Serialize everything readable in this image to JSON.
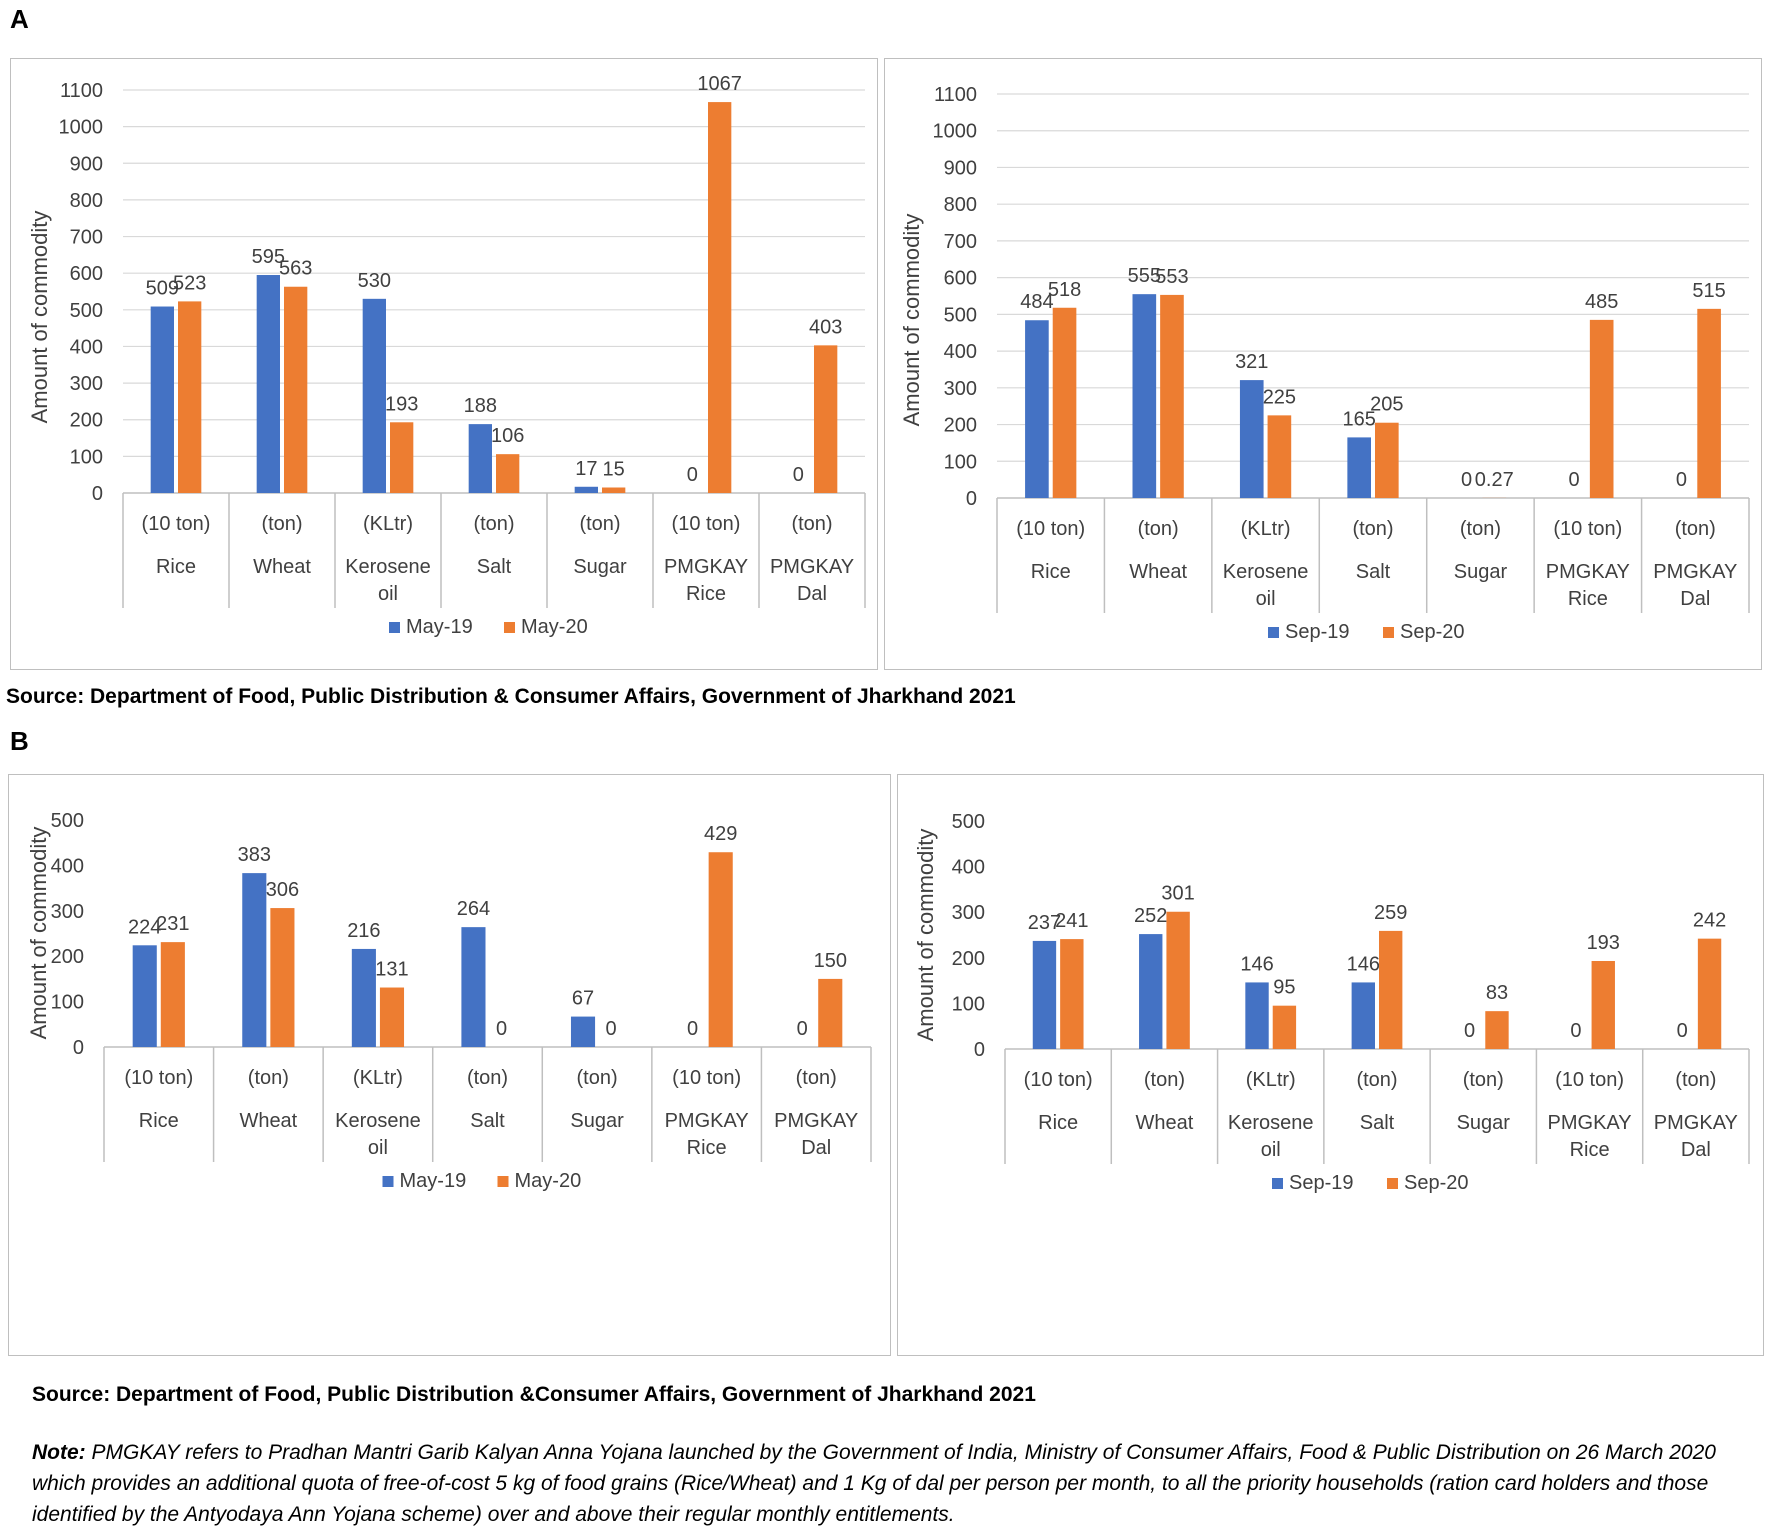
{
  "panel_a_label": "A",
  "panel_b_label": "B",
  "source_a": "Source: Department of Food, Public Distribution & Consumer Affairs, Government of Jharkhand 2021",
  "source_b": "Source: Department of Food, Public Distribution &Consumer Affairs, Government of Jharkhand 2021",
  "note_label": "Note:",
  "note_text": " PMGKAY refers to Pradhan Mantri Garib Kalyan Anna Yojana launched by the Government of India, Ministry of Consumer Affairs, Food & Public Distribution on 26 March 2020 which provides an additional quota of free-of-cost 5 kg of food grains (Rice/Wheat) and 1 Kg of dal per person per month, to all the priority households (ration card holders and those identified by the Antyodaya Ann Yojana scheme) over and above their regular monthly entitlements.",
  "colors": {
    "series1": "#4472c4",
    "series2": "#ed7d31",
    "grid": "#d9d9d9",
    "text": "#404040"
  },
  "chart_data": [
    {
      "type": "bar",
      "panel": "A",
      "ylabel": "Amount of commodity",
      "ylim": [
        0,
        1100
      ],
      "yticks": [
        0,
        100,
        200,
        300,
        400,
        500,
        600,
        700,
        800,
        900,
        1000,
        1100
      ],
      "units": [
        "(10 ton)",
        "(ton)",
        "(KLtr)",
        "(ton)",
        "(ton)",
        "(10 ton)",
        "(ton)"
      ],
      "categories": [
        [
          "Rice"
        ],
        [
          "Wheat"
        ],
        [
          "Kerosene",
          "oil"
        ],
        [
          "Salt"
        ],
        [
          "Sugar"
        ],
        [
          "PMGKAY",
          "Rice"
        ],
        [
          "PMGKAY",
          "Dal"
        ]
      ],
      "series": [
        {
          "name": "May-19",
          "values": [
            509,
            595,
            530,
            188,
            17,
            0,
            0
          ],
          "labels": [
            "509",
            "595",
            "530",
            "188",
            "17",
            "0",
            "0"
          ]
        },
        {
          "name": "May-20",
          "values": [
            523,
            563,
            193,
            106,
            15,
            1067,
            403
          ],
          "labels": [
            "523",
            "563",
            "193",
            "106",
            "15",
            "1067",
            "403"
          ]
        }
      ],
      "legend": "bottom",
      "grid": true
    },
    {
      "type": "bar",
      "panel": "A",
      "ylabel": "Amount of commodity",
      "ylim": [
        0,
        1100
      ],
      "yticks": [
        0,
        100,
        200,
        300,
        400,
        500,
        600,
        700,
        800,
        900,
        1000,
        1100
      ],
      "units": [
        "(10 ton)",
        "(ton)",
        "(KLtr)",
        "(ton)",
        "(ton)",
        "(10 ton)",
        "(ton)"
      ],
      "categories": [
        [
          "Rice"
        ],
        [
          "Wheat"
        ],
        [
          "Kerosene",
          "oil"
        ],
        [
          "Salt"
        ],
        [
          "Sugar"
        ],
        [
          "PMGKAY",
          "Rice"
        ],
        [
          "PMGKAY",
          "Dal"
        ]
      ],
      "series": [
        {
          "name": "Sep-19",
          "values": [
            484,
            555,
            321,
            165,
            0,
            0,
            0
          ],
          "labels": [
            "484",
            "555",
            "321",
            "165",
            "0",
            "0",
            "0"
          ]
        },
        {
          "name": "Sep-20",
          "values": [
            518,
            553,
            225,
            205,
            0.27,
            485,
            515
          ],
          "labels": [
            "518",
            "553",
            "225",
            "205",
            "0.27",
            "485",
            "515"
          ]
        }
      ],
      "legend": "bottom",
      "grid": true
    },
    {
      "type": "bar",
      "panel": "B",
      "ylabel": "Amount of commodity",
      "ylim": [
        0,
        500
      ],
      "yticks": [
        0,
        100,
        200,
        300,
        400,
        500
      ],
      "units": [
        "(10 ton)",
        "(ton)",
        "(KLtr)",
        "(ton)",
        "(ton)",
        "(10 ton)",
        "(ton)"
      ],
      "categories": [
        [
          "Rice"
        ],
        [
          "Wheat"
        ],
        [
          "Kerosene",
          "oil"
        ],
        [
          "Salt"
        ],
        [
          "Sugar"
        ],
        [
          "PMGKAY",
          "Rice"
        ],
        [
          "PMGKAY",
          "Dal"
        ]
      ],
      "series": [
        {
          "name": "May-19",
          "values": [
            224,
            383,
            216,
            264,
            67,
            0,
            0
          ],
          "labels": [
            "224",
            "383",
            "216",
            "264",
            "67",
            "0",
            "0"
          ]
        },
        {
          "name": "May-20",
          "values": [
            231,
            306,
            131,
            0,
            0,
            429,
            150
          ],
          "labels": [
            "231",
            "306",
            "131",
            "0",
            "0",
            "429",
            "150"
          ]
        }
      ],
      "legend": "bottom",
      "grid": false
    },
    {
      "type": "bar",
      "panel": "B",
      "ylabel": "Amount of commodity",
      "ylim": [
        0,
        500
      ],
      "yticks": [
        0,
        100,
        200,
        300,
        400,
        500
      ],
      "units": [
        "(10 ton)",
        "(ton)",
        "(KLtr)",
        "(ton)",
        "(ton)",
        "(10 ton)",
        "(ton)"
      ],
      "categories": [
        [
          "Rice"
        ],
        [
          "Wheat"
        ],
        [
          "Kerosene",
          "oil"
        ],
        [
          "Salt"
        ],
        [
          "Sugar"
        ],
        [
          "PMGKAY",
          "Rice"
        ],
        [
          "PMGKAY",
          "Dal"
        ]
      ],
      "series": [
        {
          "name": "Sep-19",
          "values": [
            237,
            252,
            146,
            146,
            0,
            0,
            0
          ],
          "labels": [
            "237",
            "252",
            "146",
            "146",
            "0",
            "0",
            "0"
          ]
        },
        {
          "name": "Sep-20",
          "values": [
            241,
            301,
            95,
            259,
            83,
            193,
            242
          ],
          "labels": [
            "241",
            "301",
            "95",
            "259",
            "83",
            "193",
            "242"
          ]
        }
      ],
      "legend": "bottom",
      "grid": false
    }
  ]
}
